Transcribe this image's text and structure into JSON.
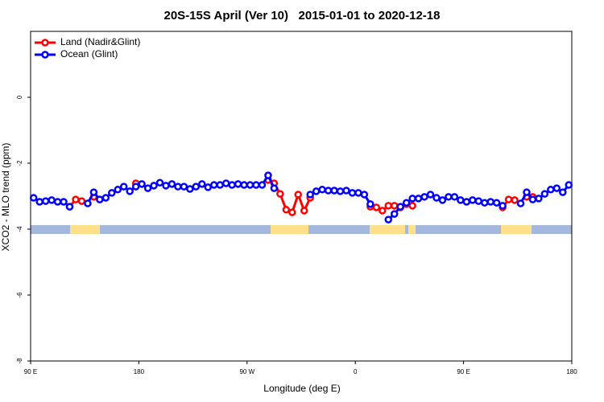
{
  "chart_data": {
    "type": "line",
    "title": "20S-15S April (Ver 10)   2015-01-01 to 2020-12-18",
    "x_label": "Longitude (deg E)",
    "y_label": "XCO2 - MLO trend (ppm)",
    "xlim": [
      90,
      540
    ],
    "ylim": [
      -8,
      2
    ],
    "xticks": [
      {
        "value": 90,
        "label": "90 E"
      },
      {
        "value": 180,
        "label": "180"
      },
      {
        "value": 270,
        "label": "90 W"
      },
      {
        "value": 360,
        "label": "0"
      },
      {
        "value": 450,
        "label": "90 E"
      },
      {
        "value": 540,
        "label": "180"
      }
    ],
    "yticks": [
      -8,
      -6,
      -4,
      -2,
      0
    ],
    "legend": "top-left",
    "x": [
      92.5,
      97.5,
      102.5,
      107.5,
      112.5,
      117.5,
      122.5,
      127.5,
      132.5,
      137.5,
      142.5,
      147.5,
      152.5,
      157.5,
      162.5,
      167.5,
      172.5,
      177.5,
      182.5,
      187.5,
      192.5,
      197.5,
      202.5,
      207.5,
      212.5,
      217.5,
      222.5,
      227.5,
      232.5,
      237.5,
      242.5,
      247.5,
      252.5,
      257.5,
      262.5,
      267.5,
      272.5,
      277.5,
      282.5,
      287.5,
      292.5,
      297.5,
      302.5,
      307.5,
      312.5,
      317.5,
      322.5,
      327.5,
      332.5,
      337.5,
      342.5,
      347.5,
      352.5,
      357.5,
      362.5,
      367.5,
      372.5,
      377.5,
      382.5,
      387.5,
      392.5,
      397.5,
      402.5,
      407.5,
      412.5,
      417.5,
      422.5,
      427.5,
      432.5,
      437.5,
      442.5,
      447.5,
      452.5,
      457.5,
      462.5,
      467.5,
      472.5,
      477.5,
      482.5,
      487.5,
      492.5,
      497.5,
      502.5,
      507.5,
      512.5,
      517.5,
      522.5,
      527.5,
      532.5,
      537.5
    ],
    "series": [
      {
        "name": "Land (Nadir&Glint)",
        "color": "#ff0000",
        "values": [
          null,
          null,
          null,
          null,
          null,
          null,
          -3.32,
          -3.1,
          -3.15,
          null,
          -3.02,
          -3.1,
          null,
          null,
          null,
          null,
          null,
          -2.61,
          null,
          null,
          null,
          null,
          null,
          null,
          null,
          null,
          null,
          null,
          null,
          null,
          null,
          null,
          null,
          null,
          null,
          null,
          null,
          null,
          null,
          -2.51,
          -2.61,
          -2.93,
          -3.41,
          -3.49,
          -2.95,
          -3.44,
          -3.05,
          null,
          null,
          null,
          null,
          null,
          null,
          null,
          null,
          null,
          -3.32,
          -3.34,
          -3.44,
          -3.29,
          -3.29,
          -3.34,
          -3.24,
          -3.29,
          null,
          null,
          null,
          null,
          null,
          null,
          null,
          null,
          null,
          null,
          null,
          null,
          null,
          null,
          -3.34,
          -3.1,
          -3.12,
          null,
          -3.02,
          -3.02,
          null,
          null,
          null,
          null,
          null,
          null
        ]
      },
      {
        "name": "Ocean (Glint)",
        "color": "#0000ff",
        "values": [
          -3.05,
          -3.17,
          -3.15,
          -3.12,
          -3.17,
          -3.17,
          -3.32,
          null,
          null,
          -3.22,
          -2.88,
          -3.1,
          -3.05,
          -2.9,
          -2.8,
          -2.71,
          -2.85,
          -2.71,
          -2.63,
          -2.76,
          -2.68,
          -2.59,
          -2.68,
          -2.63,
          -2.71,
          -2.71,
          -2.78,
          -2.71,
          -2.63,
          -2.73,
          -2.66,
          -2.66,
          -2.61,
          -2.66,
          -2.63,
          -2.66,
          -2.66,
          -2.66,
          -2.66,
          -2.37,
          -2.76,
          null,
          null,
          null,
          null,
          null,
          -2.95,
          -2.85,
          -2.8,
          -2.83,
          -2.83,
          -2.85,
          -2.83,
          -2.9,
          -2.9,
          -2.95,
          -3.24,
          null,
          null,
          -3.71,
          -3.54,
          -3.32,
          -3.2,
          -3.07,
          -3.07,
          -3.02,
          -2.95,
          -3.05,
          -3.12,
          -3.02,
          -3.02,
          -3.12,
          -3.17,
          -3.12,
          -3.15,
          -3.2,
          -3.17,
          -3.2,
          -3.29,
          null,
          null,
          -3.22,
          -2.88,
          -3.1,
          -3.07,
          -2.93,
          -2.8,
          -2.76,
          -2.88,
          -2.66
        ]
      }
    ]
  }
}
